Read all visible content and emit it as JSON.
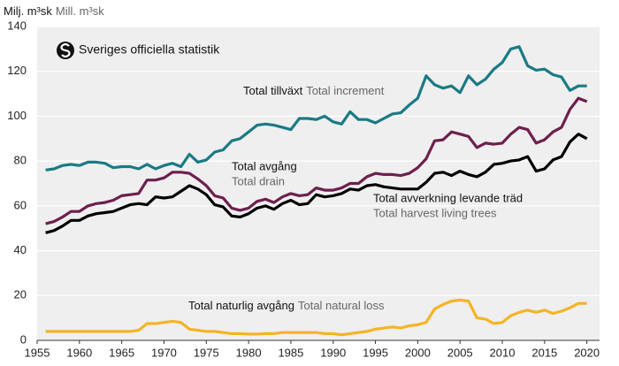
{
  "chart_data": {
    "type": "line",
    "y_label": "Milj. m³sk",
    "y_label_en": "Mill. m³sk",
    "logo": "Sveriges officiella statistik",
    "x": [
      1956,
      1957,
      1958,
      1959,
      1960,
      1961,
      1962,
      1963,
      1964,
      1965,
      1966,
      1967,
      1968,
      1969,
      1970,
      1971,
      1972,
      1973,
      1974,
      1975,
      1976,
      1977,
      1978,
      1979,
      1980,
      1981,
      1982,
      1983,
      1984,
      1985,
      1986,
      1987,
      1988,
      1989,
      1990,
      1991,
      1992,
      1993,
      1994,
      1995,
      1996,
      1997,
      1998,
      1999,
      2000,
      2001,
      2002,
      2003,
      2004,
      2005,
      2006,
      2007,
      2008,
      2009,
      2010,
      2011,
      2012,
      2013,
      2014,
      2015,
      2016,
      2017,
      2018,
      2019,
      2020
    ],
    "xlim": [
      1955,
      2021.5
    ],
    "xticks": [
      1955,
      1960,
      1965,
      1970,
      1975,
      1980,
      1985,
      1990,
      1995,
      2000,
      2005,
      2010,
      2015,
      2020
    ],
    "ylim": [
      0,
      140
    ],
    "yticks": [
      0,
      20,
      40,
      60,
      80,
      100,
      120,
      140
    ],
    "grid": true,
    "series": [
      {
        "name": "Total tillväxt",
        "name_en": "Total increment",
        "color": "#1a7a85",
        "values": [
          76,
          76.5,
          78,
          78.5,
          78,
          79.5,
          79.5,
          79,
          77,
          77.5,
          77.5,
          76.5,
          78.5,
          76.5,
          78,
          79,
          77.5,
          83,
          79.5,
          80.5,
          84,
          85,
          89,
          90,
          93,
          96,
          96.5,
          96,
          95,
          94,
          99,
          99,
          98.5,
          100,
          97.5,
          96.5,
          102,
          98.5,
          98.5,
          97,
          99,
          101,
          101.5,
          105,
          108,
          118,
          114,
          112.5,
          113.5,
          110.5,
          118,
          114,
          116.5,
          121,
          124,
          130,
          131,
          122.5,
          120.5,
          121,
          118.5,
          117.5,
          111.5,
          113.5,
          113.5
        ]
      },
      {
        "name": "Total avgång",
        "name_en": "Total drain",
        "color": "#6e1f4d",
        "values": [
          52,
          53,
          55,
          57.5,
          57.5,
          60,
          61,
          61.5,
          62.5,
          64.5,
          65,
          65.5,
          71.5,
          71.5,
          72.5,
          75,
          75,
          74.5,
          72,
          69,
          64.5,
          63.5,
          59,
          58,
          59,
          62,
          63,
          61.5,
          64,
          65.5,
          64.5,
          65,
          68,
          67,
          67,
          68,
          70,
          70,
          73,
          74.5,
          74,
          74,
          73.5,
          74.5,
          77,
          81,
          89,
          89.5,
          93,
          92,
          91,
          86,
          88,
          87.5,
          88,
          92,
          95,
          94,
          88,
          89.5,
          93,
          95,
          103,
          108,
          106.5
        ]
      },
      {
        "name": "Total avverkning levande träd",
        "name_en": "Total harvest living trees",
        "color": "#000000",
        "values": [
          48,
          49,
          51,
          53.5,
          53.5,
          55.5,
          56.5,
          57,
          57.5,
          59,
          60.5,
          61,
          60.5,
          64,
          63.5,
          64,
          66.5,
          69,
          67.5,
          65,
          60.5,
          59.5,
          55.5,
          55,
          56.5,
          59,
          60,
          58.5,
          61,
          62.5,
          60.5,
          61,
          65,
          64,
          64.5,
          65.5,
          67.5,
          67,
          69,
          69.5,
          68.5,
          68,
          67.5,
          67.5,
          67.5,
          70.5,
          74.5,
          75,
          73.5,
          75.5,
          74,
          73,
          75,
          78.5,
          79,
          80,
          80.5,
          82,
          75.5,
          76.5,
          80.5,
          82,
          88.5,
          92,
          90
        ]
      },
      {
        "name": "Total naturlig avgång",
        "name_en": "Total natural loss",
        "color": "#f5b424",
        "values": [
          4,
          4,
          4,
          4,
          4,
          4,
          4,
          4,
          4,
          4,
          4,
          4.5,
          7.5,
          7.5,
          8,
          8.5,
          8,
          5,
          4.5,
          4,
          4,
          3.5,
          3,
          3,
          2.8,
          2.8,
          3,
          3,
          3.5,
          3.5,
          3.5,
          3.5,
          3.5,
          3,
          3,
          2.5,
          3,
          3.5,
          4,
          5,
          5.5,
          6,
          5.5,
          6.5,
          7,
          8,
          14,
          16,
          17.5,
          18,
          17.5,
          10,
          9.5,
          7.5,
          8,
          11,
          12.5,
          13.5,
          12.5,
          13.5,
          12,
          13,
          14.5,
          16.5,
          16.5
        ]
      }
    ]
  }
}
